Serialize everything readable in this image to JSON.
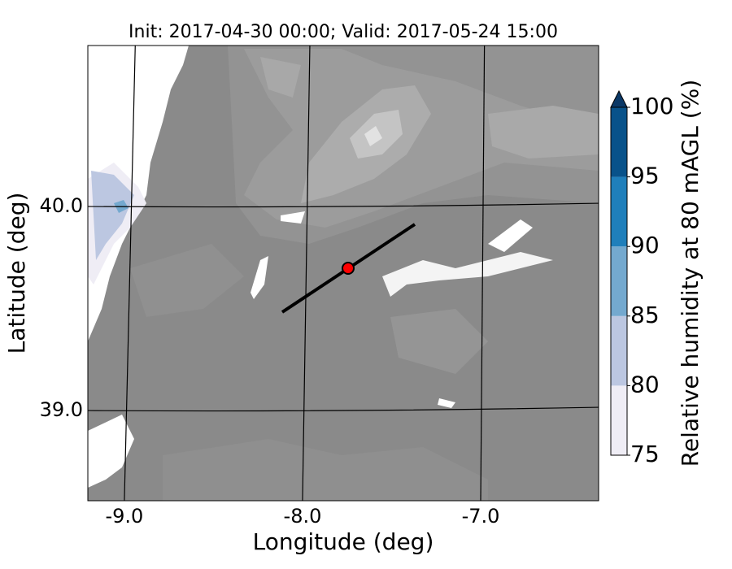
{
  "map": {
    "title": "Init: 2017-04-30 00:00; Valid: 2017-05-24 15:00",
    "xlabel": "Longitude (deg)",
    "ylabel": "Latitude (deg)",
    "xlim": [
      -9.205,
      -6.338
    ],
    "ylim": [
      38.558,
      40.789
    ],
    "xticks": [
      {
        "value": -9,
        "label": "-9.0"
      },
      {
        "value": -8,
        "label": "-8.0"
      },
      {
        "value": -7,
        "label": "-7.0"
      }
    ],
    "yticks": [
      {
        "value": 39,
        "label": "39.0"
      },
      {
        "value": 40,
        "label": "40.0"
      }
    ],
    "colorbar": {
      "label": "Relative humidity at 80 mAGL (%)",
      "levels": [
        75,
        80,
        85,
        90,
        95,
        100
      ],
      "colors": [
        "#efedf5",
        "#bcc7e1",
        "#74a9cf",
        "#1f7fbb",
        "#08528a"
      ],
      "extend_color": "#0a3866"
    }
  }
}
